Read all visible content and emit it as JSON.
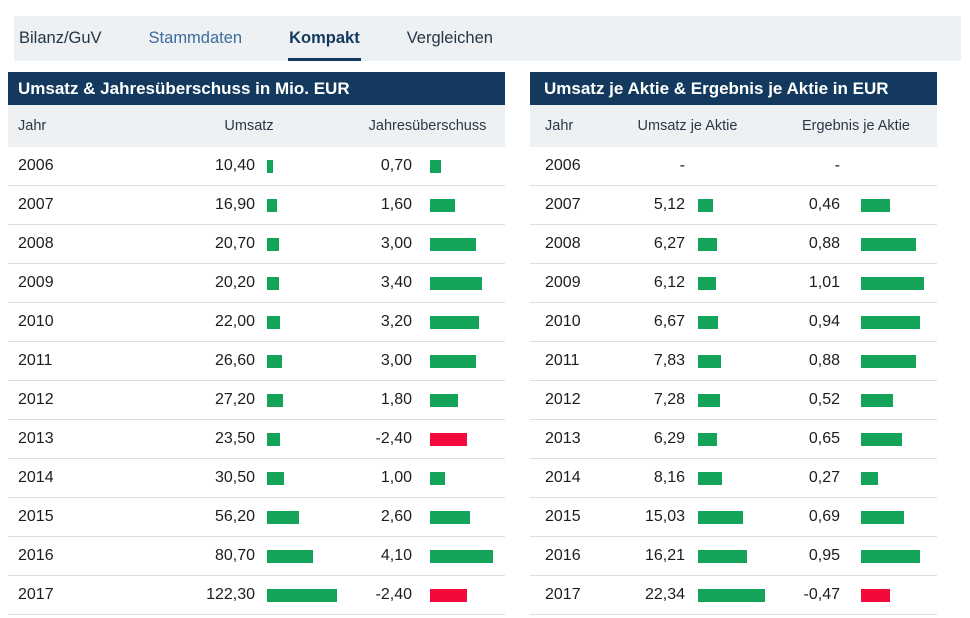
{
  "tabs": [
    {
      "label": "Bilanz/GuV",
      "active": false,
      "link": false
    },
    {
      "label": "Stammdaten",
      "active": false,
      "link": true
    },
    {
      "label": "Kompakt",
      "active": true,
      "link": false
    },
    {
      "label": "Vergleichen",
      "active": false,
      "link": false
    }
  ],
  "tables": [
    {
      "title": "Umsatz & Jahresüberschuss in Mio. EUR",
      "columns": [
        "Jahr",
        "Umsatz",
        "Jahresüberschuss"
      ],
      "rows": [
        {
          "year": "2006",
          "col1": "10,40",
          "col1_value": 10.4,
          "col2": "0,70",
          "col2_value": 0.7
        },
        {
          "year": "2007",
          "col1": "16,90",
          "col1_value": 16.9,
          "col2": "1,60",
          "col2_value": 1.6
        },
        {
          "year": "2008",
          "col1": "20,70",
          "col1_value": 20.7,
          "col2": "3,00",
          "col2_value": 3.0
        },
        {
          "year": "2009",
          "col1": "20,20",
          "col1_value": 20.2,
          "col2": "3,40",
          "col2_value": 3.4
        },
        {
          "year": "2010",
          "col1": "22,00",
          "col1_value": 22.0,
          "col2": "3,20",
          "col2_value": 3.2
        },
        {
          "year": "2011",
          "col1": "26,60",
          "col1_value": 26.6,
          "col2": "3,00",
          "col2_value": 3.0
        },
        {
          "year": "2012",
          "col1": "27,20",
          "col1_value": 27.2,
          "col2": "1,80",
          "col2_value": 1.8
        },
        {
          "year": "2013",
          "col1": "23,50",
          "col1_value": 23.5,
          "col2": "-2,40",
          "col2_value": -2.4
        },
        {
          "year": "2014",
          "col1": "30,50",
          "col1_value": 30.5,
          "col2": "1,00",
          "col2_value": 1.0
        },
        {
          "year": "2015",
          "col1": "56,20",
          "col1_value": 56.2,
          "col2": "2,60",
          "col2_value": 2.6
        },
        {
          "year": "2016",
          "col1": "80,70",
          "col1_value": 80.7,
          "col2": "4,10",
          "col2_value": 4.1
        },
        {
          "year": "2017",
          "col1": "122,30",
          "col1_value": 122.3,
          "col2": "-2,40",
          "col2_value": -2.4
        }
      ]
    },
    {
      "title": "Umsatz je Aktie & Ergebnis je Aktie in EUR",
      "columns": [
        "Jahr",
        "Umsatz je Aktie",
        "Ergebnis je Aktie"
      ],
      "rows": [
        {
          "year": "2006",
          "col1": "-",
          "col1_value": null,
          "col2": "-",
          "col2_value": null
        },
        {
          "year": "2007",
          "col1": "5,12",
          "col1_value": 5.12,
          "col2": "0,46",
          "col2_value": 0.46
        },
        {
          "year": "2008",
          "col1": "6,27",
          "col1_value": 6.27,
          "col2": "0,88",
          "col2_value": 0.88
        },
        {
          "year": "2009",
          "col1": "6,12",
          "col1_value": 6.12,
          "col2": "1,01",
          "col2_value": 1.01
        },
        {
          "year": "2010",
          "col1": "6,67",
          "col1_value": 6.67,
          "col2": "0,94",
          "col2_value": 0.94
        },
        {
          "year": "2011",
          "col1": "7,83",
          "col1_value": 7.83,
          "col2": "0,88",
          "col2_value": 0.88
        },
        {
          "year": "2012",
          "col1": "7,28",
          "col1_value": 7.28,
          "col2": "0,52",
          "col2_value": 0.52
        },
        {
          "year": "2013",
          "col1": "6,29",
          "col1_value": 6.29,
          "col2": "0,65",
          "col2_value": 0.65
        },
        {
          "year": "2014",
          "col1": "8,16",
          "col1_value": 8.16,
          "col2": "0,27",
          "col2_value": 0.27
        },
        {
          "year": "2015",
          "col1": "15,03",
          "col1_value": 15.03,
          "col2": "0,69",
          "col2_value": 0.69
        },
        {
          "year": "2016",
          "col1": "16,21",
          "col1_value": 16.21,
          "col2": "0,95",
          "col2_value": 0.95
        },
        {
          "year": "2017",
          "col1": "22,34",
          "col1_value": 22.34,
          "col2": "-0,47",
          "col2_value": -0.47
        }
      ]
    }
  ],
  "colors": {
    "header_bg": "#133a5e",
    "tab_active": "#133a5e",
    "tab_link": "#3a6c9d",
    "positive_bar": "#13a45a",
    "negative_bar": "#f20a3a",
    "header_row_bg": "#eef1f4"
  }
}
